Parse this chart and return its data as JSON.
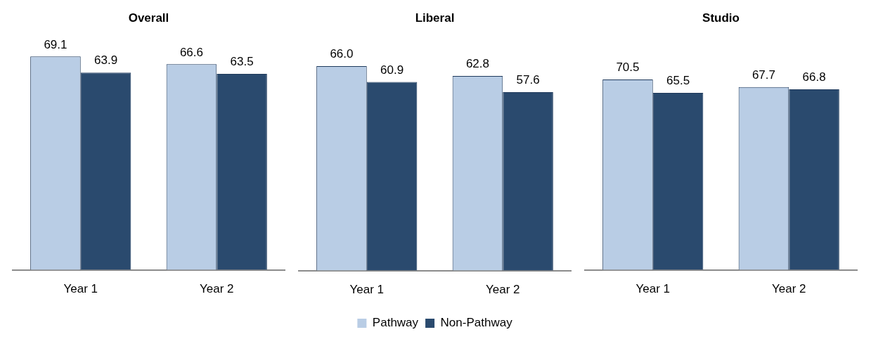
{
  "chart_data": [
    {
      "type": "bar",
      "title": "Overall",
      "categories": [
        "Year 1",
        "Year 2"
      ],
      "tick_labels": "x",
      "grid": false,
      "legend": false,
      "series": [
        {
          "color": "#b9cde5",
          "values": [
            69.1,
            66.6
          ],
          "value_labels": [
            "69.1",
            "66.6"
          ]
        },
        {
          "color": "#2a4a6e",
          "values": [
            63.9,
            63.5
          ],
          "value_labels": [
            "63.9",
            "63.5"
          ]
        }
      ]
    },
    {
      "type": "bar",
      "title": "Liberal",
      "categories": [
        "Year 1",
        "Year 2"
      ],
      "tick_labels": "x",
      "grid": false,
      "legend": "bottom",
      "series": [
        {
          "name": "Pathway",
          "color": "#b9cde5",
          "values": [
            66.0,
            62.8
          ],
          "value_labels": [
            "66.0",
            "62.8"
          ]
        },
        {
          "name": "Non-Pathway",
          "color": "#2a4a6e",
          "values": [
            60.9,
            57.6
          ],
          "value_labels": [
            "60.9",
            "57.6"
          ]
        }
      ]
    },
    {
      "type": "bar",
      "title": "Studio",
      "categories": [
        "Year 1",
        "Year 2"
      ],
      "tick_labels": "x",
      "grid": false,
      "legend": false,
      "series": [
        {
          "color": "#b9cde5",
          "values": [
            70.5,
            67.7
          ],
          "value_labels": [
            "70.5",
            "67.7"
          ]
        },
        {
          "color": "#2a4a6e",
          "values": [
            65.5,
            66.8
          ],
          "value_labels": [
            "65.5",
            "66.8"
          ]
        }
      ]
    }
  ]
}
